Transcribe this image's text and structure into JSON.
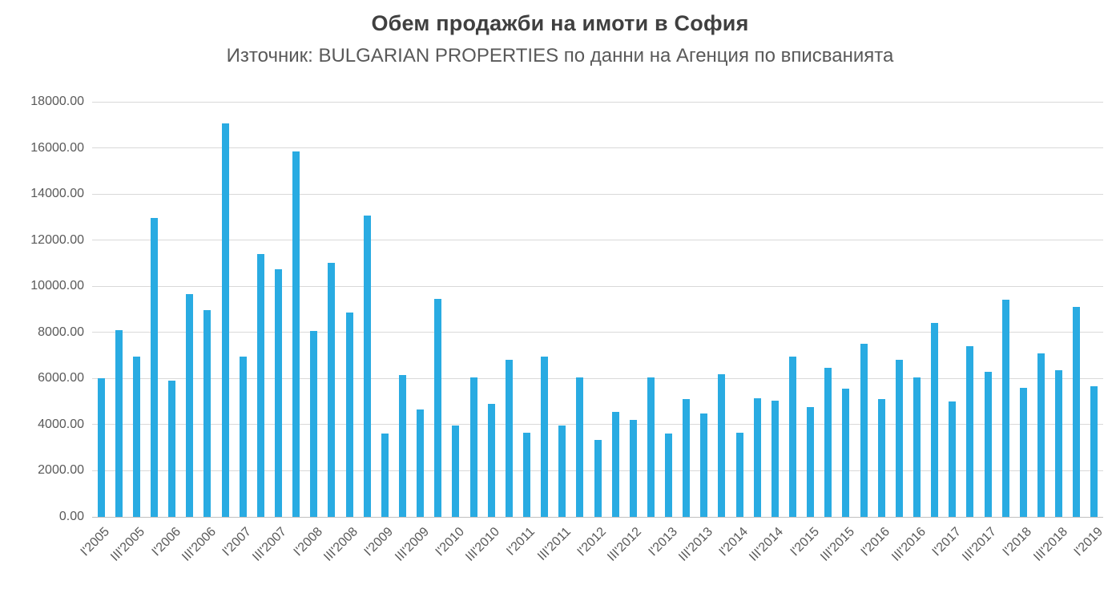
{
  "chart_data": {
    "type": "bar",
    "title": "Обем продажби на имоти в София",
    "subtitle": "Източник: BULGARIAN PROPERTIES по данни на Агенция по вписванията",
    "xlabel": "",
    "ylabel": "",
    "ylim": [
      0,
      18000
    ],
    "y_tick_step": 2000,
    "grid": true,
    "legend": false,
    "bar_color": "#29abe2",
    "gridline_color": "#d9d9d9",
    "axis_text_color": "#595959",
    "title_color": "#404040",
    "y_tick_labels": [
      "0.00",
      "2000.00",
      "4000.00",
      "6000.00",
      "8000.00",
      "10000.00",
      "12000.00",
      "14000.00",
      "16000.00",
      "18000.00"
    ],
    "x_tick_labels": [
      "I'2005",
      "III'2005",
      "I'2006",
      "III'2006",
      "I'2007",
      "III'2007",
      "I'2008",
      "III'2008",
      "I'2009",
      "III'2009",
      "I'2010",
      "III'2010",
      "I'2011",
      "III'2011",
      "I'2012",
      "III'2012",
      "I'2013",
      "III'2013",
      "I'2014",
      "III'2014",
      "I'2015",
      "III'2015",
      "I'2016",
      "III'2016",
      "I'2017",
      "III'2017",
      "I'2018",
      "III'2018",
      "I'2019"
    ],
    "x_labels_every": 2,
    "values": [
      6000,
      8100,
      6950,
      12950,
      5900,
      9650,
      8950,
      17050,
      6950,
      11400,
      10750,
      15850,
      8050,
      11000,
      8850,
      13050,
      3600,
      6150,
      4650,
      9450,
      3950,
      6050,
      4900,
      6800,
      3650,
      6950,
      3950,
      6050,
      3350,
      4550,
      4200,
      6050,
      3600,
      5100,
      4500,
      6200,
      3650,
      5150,
      5050,
      6950,
      4750,
      6450,
      5550,
      7500,
      5100,
      6800,
      6050,
      8400,
      5000,
      7400,
      6300,
      9400,
      5600,
      7100,
      6350,
      9100,
      5650
    ]
  }
}
